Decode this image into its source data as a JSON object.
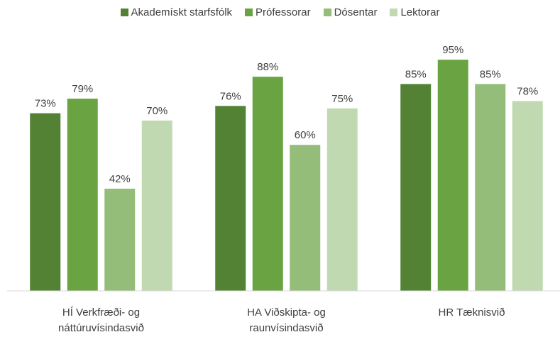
{
  "chart_data": {
    "type": "bar",
    "categories": [
      "HÍ Verkfræði- og náttúruvísindasvið",
      "HA Viðskipta- og raunvísindasvið",
      "HR Tæknisvið"
    ],
    "series": [
      {
        "name": "Akademískt starfsfólk",
        "color": "#548235",
        "values": [
          73,
          76,
          85
        ],
        "value_labels": [
          "73%",
          "76%",
          "85%"
        ]
      },
      {
        "name": "Prófessorar",
        "color": "#6aa442",
        "values": [
          79,
          88,
          95
        ],
        "value_labels": [
          "79%",
          "88%",
          "95%"
        ]
      },
      {
        "name": "Dósentar",
        "color": "#93bd79",
        "values": [
          42,
          60,
          85
        ],
        "value_labels": [
          "42%",
          "60%",
          "85%"
        ]
      },
      {
        "name": "Lektorar",
        "color": "#c1d9b1",
        "values": [
          70,
          75,
          78
        ],
        "value_labels": [
          "70%",
          "75%",
          "78%"
        ]
      }
    ],
    "ylim": [
      0,
      100
    ],
    "legend": "top"
  }
}
